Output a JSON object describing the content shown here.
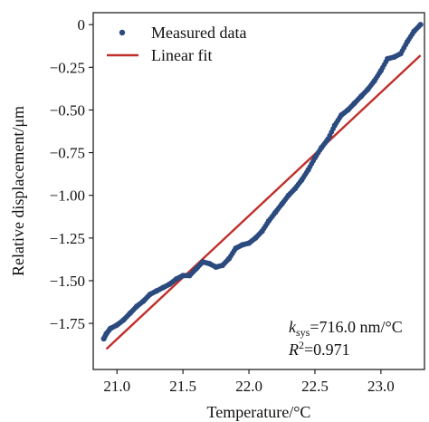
{
  "chart_data": {
    "type": "scatter",
    "xlabel": "Temperature/°C",
    "ylabel": "Relative displacement/μm",
    "xlim": [
      20.82,
      23.33
    ],
    "ylim": [
      -2.02,
      0.07
    ],
    "x_ticks": [
      21.0,
      21.5,
      22.0,
      22.5,
      23.0
    ],
    "x_tick_labels": [
      "21.0",
      "21.5",
      "22.0",
      "22.5",
      "23.0"
    ],
    "y_ticks": [
      0,
      -0.25,
      -0.5,
      -0.75,
      -1.0,
      -1.25,
      -1.5,
      -1.75
    ],
    "y_tick_labels": [
      "0",
      "−0.25",
      "−0.50",
      "−0.75",
      "−1.00",
      "−1.25",
      "−1.50",
      "−1.75"
    ],
    "grid": false,
    "legend_position": "top-left",
    "colors": {
      "measured": "#2b4a7e",
      "fit": "#c0302b"
    },
    "series": [
      {
        "name": "Measured data",
        "style": "markers",
        "points": [
          [
            20.9,
            -1.84
          ],
          [
            20.92,
            -1.81
          ],
          [
            20.95,
            -1.78
          ],
          [
            21.0,
            -1.76
          ],
          [
            21.05,
            -1.73
          ],
          [
            21.1,
            -1.69
          ],
          [
            21.15,
            -1.65
          ],
          [
            21.2,
            -1.62
          ],
          [
            21.25,
            -1.58
          ],
          [
            21.3,
            -1.56
          ],
          [
            21.35,
            -1.54
          ],
          [
            21.4,
            -1.52
          ],
          [
            21.45,
            -1.49
          ],
          [
            21.5,
            -1.47
          ],
          [
            21.55,
            -1.47
          ],
          [
            21.6,
            -1.43
          ],
          [
            21.65,
            -1.39
          ],
          [
            21.7,
            -1.4
          ],
          [
            21.75,
            -1.42
          ],
          [
            21.8,
            -1.41
          ],
          [
            21.85,
            -1.37
          ],
          [
            21.9,
            -1.31
          ],
          [
            21.95,
            -1.29
          ],
          [
            22.0,
            -1.28
          ],
          [
            22.05,
            -1.25
          ],
          [
            22.1,
            -1.21
          ],
          [
            22.15,
            -1.15
          ],
          [
            22.2,
            -1.1
          ],
          [
            22.25,
            -1.05
          ],
          [
            22.3,
            -1.0
          ],
          [
            22.35,
            -0.96
          ],
          [
            22.4,
            -0.91
          ],
          [
            22.45,
            -0.85
          ],
          [
            22.5,
            -0.78
          ],
          [
            22.55,
            -0.72
          ],
          [
            22.6,
            -0.67
          ],
          [
            22.65,
            -0.59
          ],
          [
            22.7,
            -0.53
          ],
          [
            22.75,
            -0.5
          ],
          [
            22.8,
            -0.46
          ],
          [
            22.85,
            -0.42
          ],
          [
            22.9,
            -0.38
          ],
          [
            22.95,
            -0.33
          ],
          [
            23.0,
            -0.27
          ],
          [
            23.05,
            -0.2
          ],
          [
            23.1,
            -0.19
          ],
          [
            23.15,
            -0.17
          ],
          [
            23.2,
            -0.1
          ],
          [
            23.25,
            -0.04
          ],
          [
            23.3,
            0.0
          ]
        ]
      },
      {
        "name": "Linear fit",
        "style": "line",
        "points": [
          [
            20.92,
            -1.9
          ],
          [
            23.3,
            -0.18
          ]
        ]
      }
    ],
    "annotations": [
      {
        "parts": [
          {
            "t": "k",
            "italic": true
          },
          {
            "t": "sys",
            "sub": true
          },
          {
            "t": "=716.0 nm/°C"
          }
        ]
      },
      {
        "parts": [
          {
            "t": "R",
            "italic": true
          },
          {
            "t": "2",
            "sup": true
          },
          {
            "t": "=0.971"
          }
        ]
      }
    ]
  }
}
